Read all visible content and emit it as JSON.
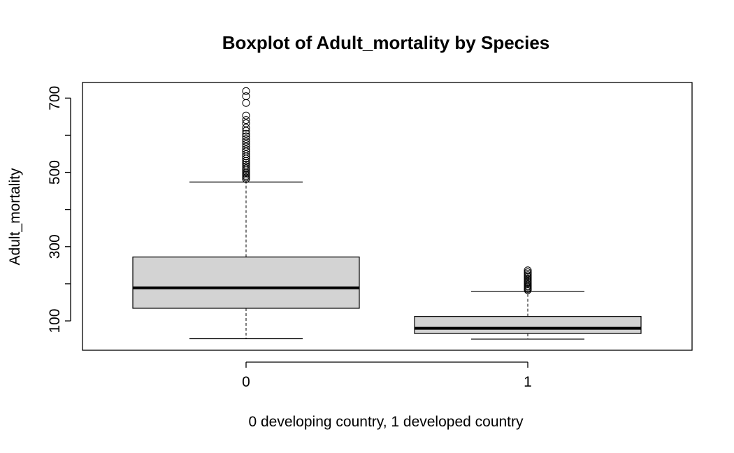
{
  "chart_data": {
    "type": "box",
    "title": "Boxplot of Adult_mortality by Species",
    "xlabel": "0 developing country, 1 developed country",
    "ylabel": "Adult_mortality",
    "ylim": [
      21,
      742
    ],
    "yticks": [
      100,
      200,
      300,
      400,
      500,
      600,
      700
    ],
    "ytick_labels": [
      "100",
      "",
      "300",
      "",
      "500",
      "",
      "700"
    ],
    "box_fill": "#d3d3d3",
    "groups": [
      {
        "label": "0",
        "whisker_low": 52,
        "q1": 134,
        "median": 189,
        "q3": 272,
        "whisker_high": 474,
        "outliers": [
          482,
          486,
          490,
          494,
          498,
          502,
          507,
          511,
          516,
          521,
          526,
          531,
          537,
          543,
          549,
          556,
          562,
          569,
          576,
          583,
          590,
          597,
          604,
          612,
          620,
          632,
          641,
          653,
          687,
          705,
          719
        ]
      },
      {
        "label": "1",
        "whisker_low": 51,
        "q1": 66,
        "median": 80,
        "q3": 112,
        "whisker_high": 180,
        "outliers": [
          183,
          186,
          189,
          192,
          195,
          199,
          203,
          207,
          211,
          215,
          219,
          223,
          227,
          231,
          236
        ]
      }
    ]
  }
}
